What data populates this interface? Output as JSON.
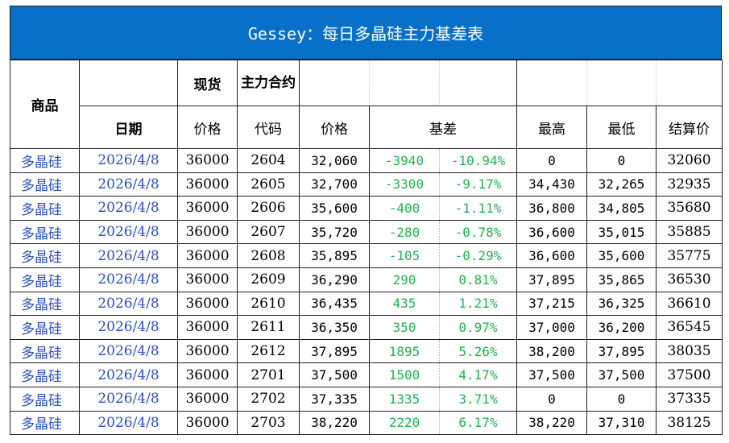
{
  "title": "Gessey：每日多晶硅主力基差表",
  "header_row1": {
    "commodity": "商品",
    "spot": "现货",
    "main_contract": "主力合约"
  },
  "header_row2": {
    "date": "日期",
    "price": "价格",
    "code": "代码",
    "contract_price": "价格",
    "basis": "基差",
    "high": "最高",
    "low": "最低",
    "settle": "结算价"
  },
  "rows": [
    {
      "name": "多晶硅",
      "date": "2026/4/8",
      "spot": "36000",
      "code": "2604",
      "price": "32,060",
      "basis": "-3940",
      "basis_pct": "-10.94%",
      "high": "0",
      "low": "0",
      "settle": "32060"
    },
    {
      "name": "多晶硅",
      "date": "2026/4/8",
      "spot": "36000",
      "code": "2605",
      "price": "32,700",
      "basis": "-3300",
      "basis_pct": "-9.17%",
      "high": "34,430",
      "low": "32,265",
      "settle": "32935"
    },
    {
      "name": "多晶硅",
      "date": "2026/4/8",
      "spot": "36000",
      "code": "2606",
      "price": "35,600",
      "basis": "-400",
      "basis_pct": "-1.11%",
      "high": "36,800",
      "low": "34,805",
      "settle": "35680"
    },
    {
      "name": "多晶硅",
      "date": "2026/4/8",
      "spot": "36000",
      "code": "2607",
      "price": "35,720",
      "basis": "-280",
      "basis_pct": "-0.78%",
      "high": "36,600",
      "low": "35,015",
      "settle": "35885"
    },
    {
      "name": "多晶硅",
      "date": "2026/4/8",
      "spot": "36000",
      "code": "2608",
      "price": "35,895",
      "basis": "-105",
      "basis_pct": "-0.29%",
      "high": "36,600",
      "low": "35,600",
      "settle": "35775"
    },
    {
      "name": "多晶硅",
      "date": "2026/4/8",
      "spot": "36000",
      "code": "2609",
      "price": "36,290",
      "basis": "290",
      "basis_pct": "0.81%",
      "high": "37,895",
      "low": "35,865",
      "settle": "36530"
    },
    {
      "name": "多晶硅",
      "date": "2026/4/8",
      "spot": "36000",
      "code": "2610",
      "price": "36,435",
      "basis": "435",
      "basis_pct": "1.21%",
      "high": "37,215",
      "low": "36,325",
      "settle": "36610"
    },
    {
      "name": "多晶硅",
      "date": "2026/4/8",
      "spot": "36000",
      "code": "2611",
      "price": "36,350",
      "basis": "350",
      "basis_pct": "0.97%",
      "high": "37,000",
      "low": "36,200",
      "settle": "36545"
    },
    {
      "name": "多晶硅",
      "date": "2026/4/8",
      "spot": "36000",
      "code": "2612",
      "price": "37,895",
      "basis": "1895",
      "basis_pct": "5.26%",
      "high": "38,200",
      "low": "37,895",
      "settle": "38035"
    },
    {
      "name": "多晶硅",
      "date": "2026/4/8",
      "spot": "36000",
      "code": "2701",
      "price": "37,500",
      "basis": "1500",
      "basis_pct": "4.17%",
      "high": "37,500",
      "low": "37,500",
      "settle": "37500"
    },
    {
      "name": "多晶硅",
      "date": "2026/4/8",
      "spot": "36000",
      "code": "2702",
      "price": "37,335",
      "basis": "1335",
      "basis_pct": "3.71%",
      "high": "0",
      "low": "0",
      "settle": "37335"
    },
    {
      "name": "多晶硅",
      "date": "2026/4/8",
      "spot": "36000",
      "code": "2703",
      "price": "38,220",
      "basis": "2220",
      "basis_pct": "6.17%",
      "high": "38,220",
      "low": "37,310",
      "settle": "38125"
    }
  ],
  "colors": {
    "title_bg": "#0870C8",
    "link_blue": "#2a4fc0",
    "basis_green": "#22b14c"
  }
}
